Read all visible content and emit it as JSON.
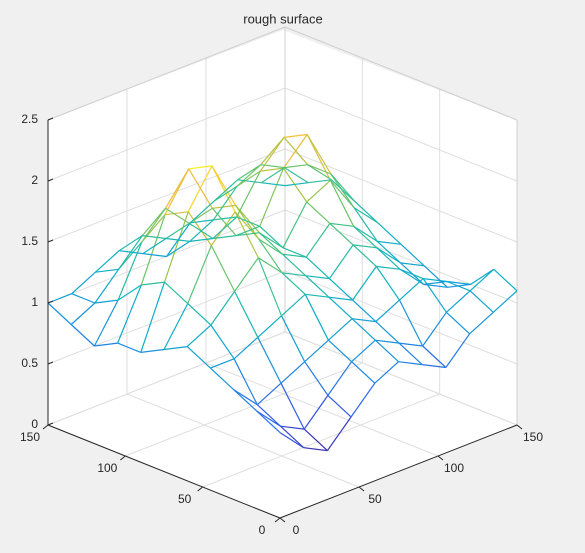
{
  "chart_data": {
    "type": "mesh",
    "title": "rough surface",
    "x": [
      0,
      15,
      30,
      45,
      60,
      75,
      90,
      105,
      120,
      135,
      150
    ],
    "y": [
      0,
      15,
      30,
      45,
      60,
      75,
      90,
      105,
      120,
      135,
      150
    ],
    "z": [
      [
        0.7,
        0.5,
        0.4,
        0.6,
        0.8,
        0.9,
        0.8,
        0.7,
        0.9,
        1.0,
        1.1
      ],
      [
        0.8,
        0.6,
        0.5,
        0.7,
        0.9,
        1.0,
        0.9,
        0.8,
        1.0,
        1.1,
        1.2
      ],
      [
        0.9,
        0.7,
        0.8,
        0.9,
        1.0,
        1.1,
        1.0,
        1.1,
        1.2,
        1.1,
        1.0
      ],
      [
        1.0,
        1.0,
        1.1,
        1.2,
        1.3,
        1.2,
        1.1,
        1.3,
        1.2,
        1.0,
        0.9
      ],
      [
        1.1,
        1.2,
        1.4,
        1.6,
        1.4,
        1.3,
        1.2,
        1.4,
        1.3,
        1.1,
        1.0
      ],
      [
        1.0,
        1.3,
        1.7,
        1.9,
        1.6,
        1.4,
        1.3,
        1.5,
        1.4,
        1.2,
        1.1
      ],
      [
        0.9,
        1.4,
        1.9,
        2.2,
        1.8,
        1.5,
        1.3,
        1.6,
        1.7,
        1.4,
        1.2
      ],
      [
        0.9,
        1.3,
        1.8,
        2.1,
        1.7,
        1.4,
        1.4,
        1.8,
        2.0,
        1.6,
        1.3
      ],
      [
        0.8,
        1.1,
        1.5,
        1.7,
        1.5,
        1.3,
        1.4,
        1.7,
        1.9,
        1.6,
        1.4
      ],
      [
        0.9,
        1.0,
        1.2,
        1.4,
        1.3,
        1.2,
        1.3,
        1.5,
        1.6,
        1.5,
        1.3
      ],
      [
        1.0,
        1.0,
        1.1,
        1.2,
        1.1,
        1.0,
        1.2,
        1.3,
        1.4,
        1.3,
        1.2
      ]
    ],
    "xlim": [
      0,
      150
    ],
    "ylim": [
      0,
      150
    ],
    "zlim": [
      0,
      2.5
    ],
    "xticks": [
      0,
      50,
      100,
      150
    ],
    "yticks": [
      0,
      50,
      100,
      150
    ],
    "zticks": [
      0,
      0.5,
      1,
      1.5,
      2,
      2.5
    ],
    "grid": true,
    "colormap": [
      "#3e26a8",
      "#2f5ef0",
      "#1b8fdf",
      "#0cb1c6",
      "#3dc38a",
      "#a2c545",
      "#f2bd3a",
      "#f9fb15"
    ]
  }
}
